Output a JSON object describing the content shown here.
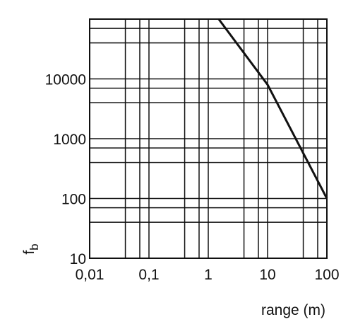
{
  "chart_data": {
    "type": "line",
    "xlabel": "range (m)",
    "ylabel": [
      "f",
      "b"
    ],
    "x": [
      1.5,
      10,
      100
    ],
    "series": [
      {
        "color": "#111111",
        "values": [
          100000,
          8000,
          100
        ]
      }
    ],
    "xscale": "log",
    "yscale": "log",
    "xlim": [
      0.01,
      100
    ],
    "ylim": [
      10,
      100000
    ],
    "xticks": [
      {
        "value": 0.01,
        "label": "0,01"
      },
      {
        "value": 0.1,
        "label": "0,1"
      },
      1,
      10,
      100
    ],
    "yticks": [
      10,
      100,
      1000,
      10000
    ],
    "xminorticks": [
      0.04,
      0.07,
      0.4,
      0.7,
      4,
      7,
      40,
      70
    ],
    "yminorticks": [
      40,
      70,
      400,
      700,
      4000,
      7000,
      40000,
      70000
    ],
    "grid": true
  }
}
